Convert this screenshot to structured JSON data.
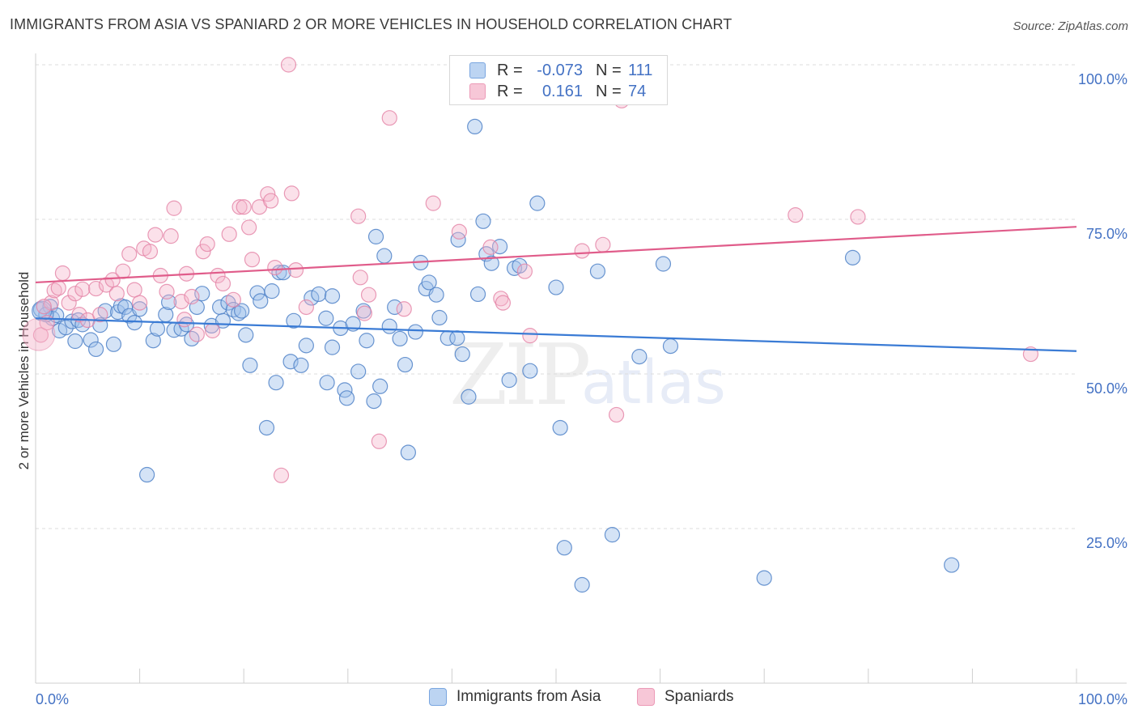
{
  "title": "IMMIGRANTS FROM ASIA VS SPANIARD 2 OR MORE VEHICLES IN HOUSEHOLD CORRELATION CHART",
  "source": "Source: ZipAtlas.com",
  "watermark": {
    "zip": "ZIP",
    "atlas": "atlas"
  },
  "colors": {
    "blue": "#5b9bd5",
    "blue_line": "#3a7bd5",
    "pink": "#ee8fb0",
    "pink_line": "#e05c8a",
    "tick": "#4472c4"
  },
  "legend_top": {
    "rows": [
      {
        "r_label": "R =",
        "r_value": "-0.073",
        "n_label": "N =",
        "n_value": "111"
      },
      {
        "r_label": "R =",
        "r_value": "0.161",
        "n_label": "N =",
        "n_value": "74"
      }
    ]
  },
  "legend_bottom": {
    "items": [
      {
        "label": "Immigrants from Asia"
      },
      {
        "label": "Spaniards"
      }
    ]
  },
  "chart_data": {
    "type": "scatter",
    "title": "IMMIGRANTS FROM ASIA VS SPANIARD 2 OR MORE VEHICLES IN HOUSEHOLD CORRELATION CHART",
    "xlabel": "",
    "ylabel": "2 or more Vehicles in Household",
    "xlim": [
      0,
      100
    ],
    "ylim": [
      0,
      100
    ],
    "x_tick_labels": [
      "0.0%",
      "100.0%"
    ],
    "y_ticks": [
      {
        "value": 25,
        "label": "25.0%"
      },
      {
        "value": 50,
        "label": "50.0%"
      },
      {
        "value": 75,
        "label": "75.0%"
      },
      {
        "value": 100,
        "label": "100.0%"
      }
    ],
    "grid": "horizontal-dashed",
    "legend_position": "bottom",
    "series": [
      {
        "name": "Immigrants from Asia",
        "color": "#5b9bd5",
        "trend": {
          "x": [
            0,
            100
          ],
          "y": [
            59.0,
            53.7
          ]
        },
        "points": [
          [
            0.5,
            60.4
          ],
          [
            1.4,
            60.9
          ],
          [
            1.6,
            59.0
          ],
          [
            2.0,
            59.5
          ],
          [
            2.3,
            57.0
          ],
          [
            2.9,
            57.5
          ],
          [
            3.5,
            58.5
          ],
          [
            4.1,
            58.7
          ],
          [
            4.5,
            58.0
          ],
          [
            5.3,
            55.5
          ],
          [
            5.8,
            54.0
          ],
          [
            6.2,
            57.9
          ],
          [
            6.7,
            60.2
          ],
          [
            7.5,
            54.8
          ],
          [
            7.9,
            60.0
          ],
          [
            8.2,
            61.0
          ],
          [
            8.6,
            60.8
          ],
          [
            9.0,
            59.4
          ],
          [
            9.5,
            58.3
          ],
          [
            10.0,
            60.5
          ],
          [
            10.7,
            33.7
          ],
          [
            11.3,
            55.4
          ],
          [
            11.7,
            57.3
          ],
          [
            12.5,
            59.6
          ],
          [
            13.3,
            57.1
          ],
          [
            14.0,
            57.3
          ],
          [
            14.5,
            58.0
          ],
          [
            15.0,
            55.7
          ],
          [
            15.5,
            60.8
          ],
          [
            16.0,
            63.0
          ],
          [
            16.9,
            57.8
          ],
          [
            17.7,
            60.8
          ],
          [
            18.0,
            58.6
          ],
          [
            18.5,
            61.5
          ],
          [
            19.0,
            60.4
          ],
          [
            19.5,
            59.8
          ],
          [
            19.8,
            60.2
          ],
          [
            20.2,
            56.3
          ],
          [
            20.6,
            51.4
          ],
          [
            21.3,
            63.1
          ],
          [
            21.6,
            61.8
          ],
          [
            22.2,
            41.3
          ],
          [
            22.7,
            63.4
          ],
          [
            23.1,
            48.6
          ],
          [
            23.4,
            66.4
          ],
          [
            23.8,
            66.4
          ],
          [
            24.5,
            52.0
          ],
          [
            24.8,
            58.6
          ],
          [
            25.5,
            51.4
          ],
          [
            26.0,
            54.6
          ],
          [
            26.5,
            62.3
          ],
          [
            27.2,
            62.9
          ],
          [
            28.0,
            48.6
          ],
          [
            28.5,
            54.3
          ],
          [
            28.5,
            62.6
          ],
          [
            29.3,
            57.4
          ],
          [
            29.7,
            47.4
          ],
          [
            29.9,
            46.1
          ],
          [
            30.5,
            58.1
          ],
          [
            31.0,
            50.4
          ],
          [
            31.5,
            60.2
          ],
          [
            31.8,
            55.4
          ],
          [
            32.5,
            45.6
          ],
          [
            32.7,
            72.2
          ],
          [
            33.5,
            69.1
          ],
          [
            34.0,
            57.7
          ],
          [
            34.5,
            60.8
          ],
          [
            35.0,
            55.7
          ],
          [
            35.5,
            51.5
          ],
          [
            35.8,
            37.3
          ],
          [
            36.5,
            56.8
          ],
          [
            37.0,
            68.0
          ],
          [
            37.5,
            63.8
          ],
          [
            37.8,
            64.8
          ],
          [
            38.5,
            62.8
          ],
          [
            38.8,
            59.1
          ],
          [
            39.6,
            55.8
          ],
          [
            40.5,
            55.8
          ],
          [
            40.6,
            71.7
          ],
          [
            41.0,
            53.2
          ],
          [
            41.6,
            46.3
          ],
          [
            42.2,
            90.0
          ],
          [
            42.5,
            62.9
          ],
          [
            43.0,
            74.7
          ],
          [
            43.3,
            69.4
          ],
          [
            43.8,
            67.9
          ],
          [
            44.6,
            70.6
          ],
          [
            45.5,
            49.0
          ],
          [
            46.0,
            67.1
          ],
          [
            46.5,
            67.5
          ],
          [
            47.5,
            50.5
          ],
          [
            48.2,
            77.6
          ],
          [
            50.0,
            64.0
          ],
          [
            50.4,
            41.3
          ],
          [
            50.8,
            21.9
          ],
          [
            52.0,
            100.0
          ],
          [
            52.5,
            15.9
          ],
          [
            54.0,
            66.6
          ],
          [
            55.4,
            24.0
          ],
          [
            58.0,
            52.8
          ],
          [
            59.0,
            100.0
          ],
          [
            60.3,
            67.8
          ],
          [
            61.0,
            54.5
          ],
          [
            70.0,
            17.0
          ],
          [
            78.5,
            68.8
          ],
          [
            88.0,
            19.1
          ],
          [
            1.0,
            59.6
          ],
          [
            3.8,
            55.3
          ],
          [
            12.8,
            61.6
          ],
          [
            27.9,
            59.0
          ],
          [
            33.1,
            48.0
          ]
        ]
      },
      {
        "name": "Spaniards",
        "color": "#ee8fb0",
        "trend": {
          "x": [
            0,
            100
          ],
          "y": [
            64.8,
            73.8
          ]
        },
        "points": [
          [
            0.5,
            56.3
          ],
          [
            1.1,
            58.3
          ],
          [
            1.5,
            61.5
          ],
          [
            1.8,
            63.5
          ],
          [
            2.2,
            63.9
          ],
          [
            2.6,
            66.3
          ],
          [
            3.2,
            61.5
          ],
          [
            3.8,
            63.0
          ],
          [
            4.2,
            59.6
          ],
          [
            4.5,
            63.7
          ],
          [
            5.0,
            58.7
          ],
          [
            5.8,
            63.8
          ],
          [
            6.2,
            59.6
          ],
          [
            6.8,
            64.4
          ],
          [
            7.4,
            65.2
          ],
          [
            7.8,
            63.0
          ],
          [
            8.4,
            66.6
          ],
          [
            9.0,
            69.4
          ],
          [
            9.5,
            63.6
          ],
          [
            10.0,
            61.5
          ],
          [
            10.4,
            70.3
          ],
          [
            11.0,
            69.8
          ],
          [
            11.5,
            72.5
          ],
          [
            12.0,
            65.9
          ],
          [
            12.6,
            63.3
          ],
          [
            13.0,
            72.3
          ],
          [
            13.3,
            76.8
          ],
          [
            14.0,
            61.7
          ],
          [
            14.5,
            66.2
          ],
          [
            15.0,
            62.5
          ],
          [
            15.5,
            56.4
          ],
          [
            16.1,
            69.8
          ],
          [
            16.5,
            71.0
          ],
          [
            17.0,
            57.0
          ],
          [
            17.5,
            65.9
          ],
          [
            18.0,
            64.6
          ],
          [
            18.6,
            72.6
          ],
          [
            19.0,
            62.0
          ],
          [
            19.6,
            77.0
          ],
          [
            20.0,
            77.0
          ],
          [
            20.5,
            73.7
          ],
          [
            20.8,
            68.5
          ],
          [
            21.5,
            77.0
          ],
          [
            22.3,
            79.1
          ],
          [
            22.6,
            78.0
          ],
          [
            23.0,
            67.2
          ],
          [
            23.6,
            33.6
          ],
          [
            24.3,
            100.0
          ],
          [
            24.6,
            79.2
          ],
          [
            25.0,
            66.8
          ],
          [
            26.0,
            60.8
          ],
          [
            31.0,
            75.5
          ],
          [
            31.2,
            65.6
          ],
          [
            31.6,
            59.8
          ],
          [
            32.0,
            62.8
          ],
          [
            33.0,
            39.1
          ],
          [
            34.0,
            91.4
          ],
          [
            35.4,
            60.5
          ],
          [
            38.2,
            77.6
          ],
          [
            40.7,
            73.0
          ],
          [
            43.7,
            70.5
          ],
          [
            44.7,
            62.2
          ],
          [
            47.0,
            66.6
          ],
          [
            47.5,
            56.2
          ],
          [
            52.5,
            69.9
          ],
          [
            54.5,
            70.9
          ],
          [
            55.8,
            43.4
          ],
          [
            56.3,
            94.2
          ],
          [
            73.0,
            75.7
          ],
          [
            79.0,
            75.4
          ],
          [
            95.6,
            53.2
          ],
          [
            0.8,
            60.9
          ],
          [
            44.9,
            61.5
          ],
          [
            14.3,
            58.8
          ]
        ]
      }
    ]
  }
}
